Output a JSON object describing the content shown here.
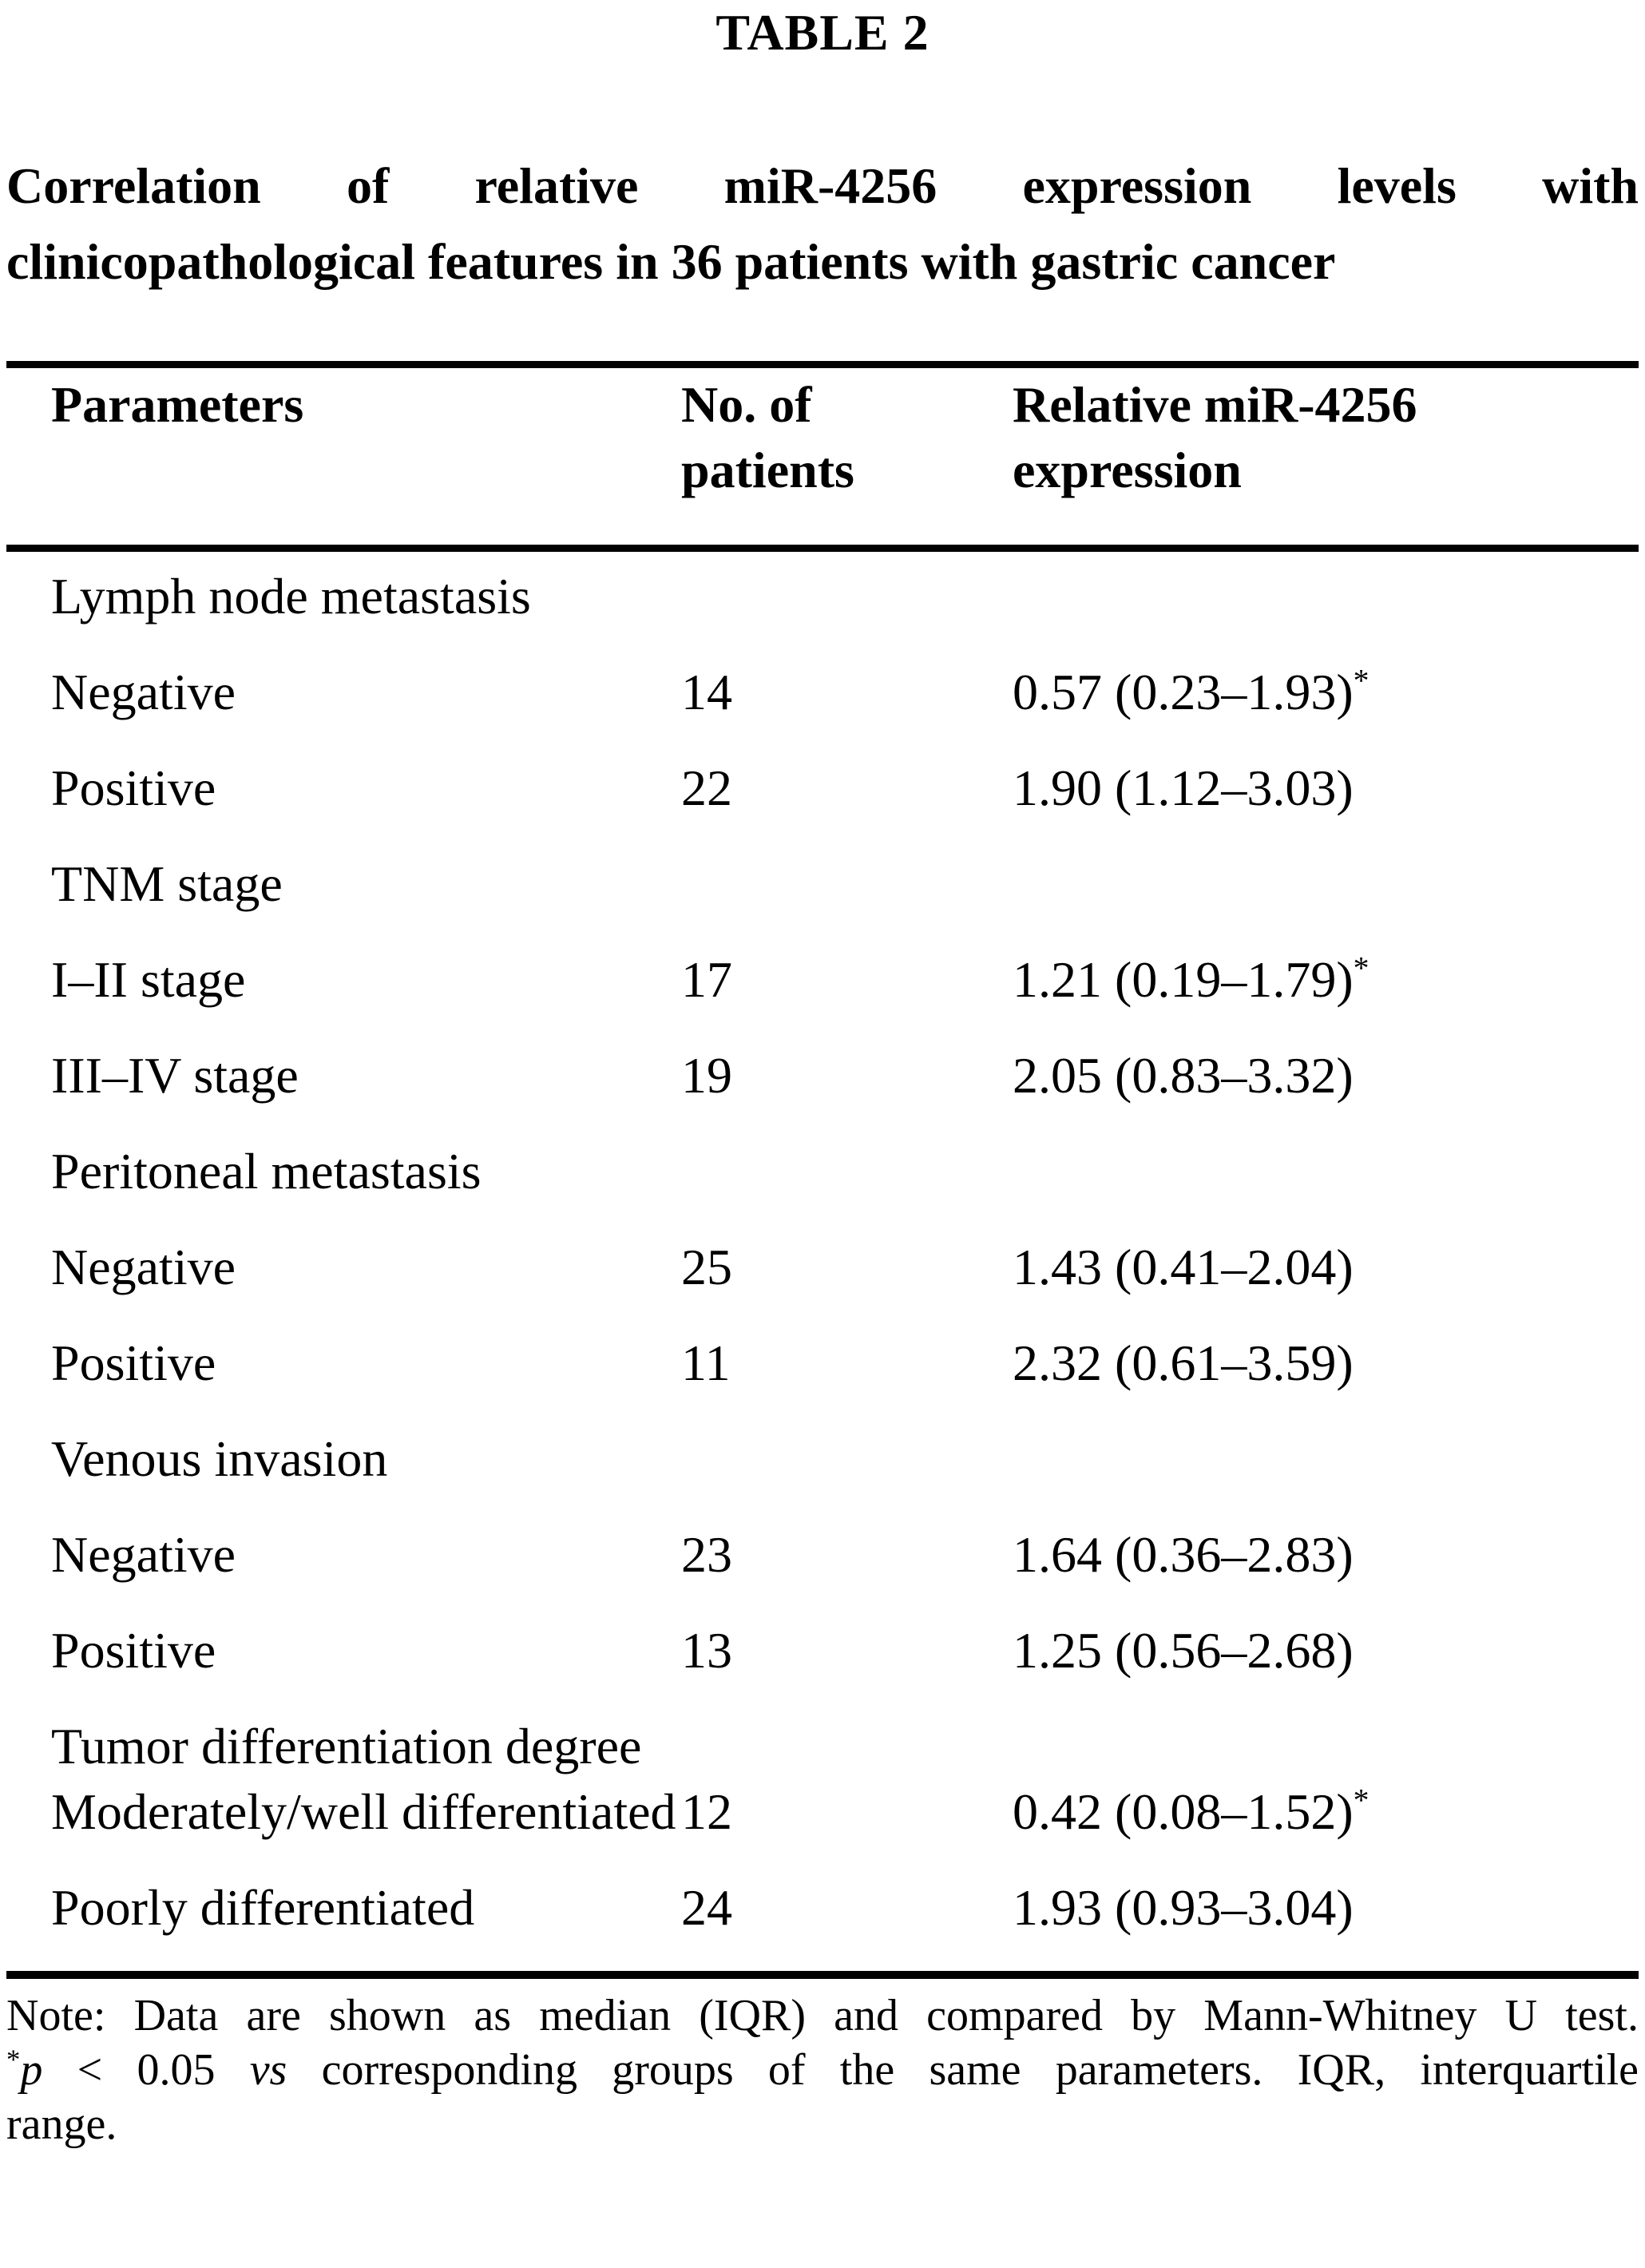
{
  "table_label": "TABLE 2",
  "title": {
    "line1": "Correlation of relative miR-4256 expression levels with",
    "line2": "clinicopathological features in 36 patients with gastric cancer"
  },
  "columns": {
    "parameters": "Parameters",
    "patients_line1": "No. of",
    "patients_line2": "patients",
    "expression_line1": "Relative miR-4256",
    "expression_line2": "expression"
  },
  "rows": [
    {
      "type": "group",
      "label": "Lymph node metastasis"
    },
    {
      "type": "data",
      "label": "Negative",
      "patients": "14",
      "expression": "0.57 (0.23–1.93)",
      "star": "*"
    },
    {
      "type": "data",
      "label": "Positive",
      "patients": "22",
      "expression": "1.90 (1.12–3.03)",
      "star": ""
    },
    {
      "type": "group",
      "label": "TNM stage"
    },
    {
      "type": "data",
      "label": "I–II stage",
      "patients": "17",
      "expression": "1.21 (0.19–1.79)",
      "star": "*"
    },
    {
      "type": "data",
      "label": "III–IV stage",
      "patients": "19",
      "expression": "2.05 (0.83–3.32)",
      "star": ""
    },
    {
      "type": "group",
      "label": "Peritoneal metastasis"
    },
    {
      "type": "data",
      "label": "Negative",
      "patients": "25",
      "expression": "1.43 (0.41–2.04)",
      "star": ""
    },
    {
      "type": "data",
      "label": "Positive",
      "patients": "11",
      "expression": "2.32 (0.61–3.59)",
      "star": ""
    },
    {
      "type": "group",
      "label": "Venous invasion"
    },
    {
      "type": "data",
      "label": "Negative",
      "patients": "23",
      "expression": "1.64 (0.36–2.83)",
      "star": ""
    },
    {
      "type": "data",
      "label": "Positive",
      "patients": "13",
      "expression": "1.25 (0.56–2.68)",
      "star": ""
    },
    {
      "type": "group",
      "label": "Tumor differentiation degree"
    },
    {
      "type": "data",
      "label": "Moderately/well differentiated",
      "patients": "12",
      "expression": "0.42 (0.08–1.52)",
      "star": "*"
    },
    {
      "type": "data",
      "label": "Poorly differentiated",
      "patients": "24",
      "expression": "1.93 (0.93–3.04)",
      "star": ""
    }
  ],
  "note": {
    "line1": "Note: Data are shown as median (IQR) and compared by Mann-Whitney U test.",
    "line2_star": "*",
    "line2_p": "p",
    "line2_mid": " < 0.05 ",
    "line2_vs": "vs",
    "line2_rest": " corresponding groups of the same parameters. IQR, interquartile",
    "line3": "range."
  }
}
